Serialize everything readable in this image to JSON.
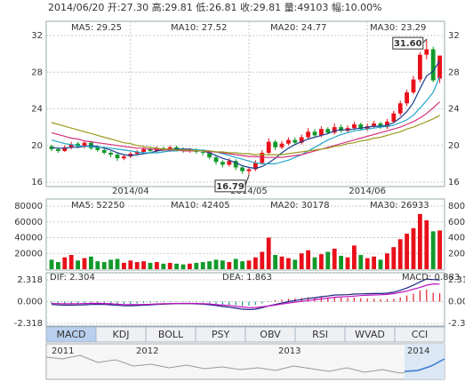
{
  "header": "2014/06/20 开:27.30 高:29.81 低:26.81 收:29.81 量:49103 幅:10.00%",
  "chart_data": [
    {
      "type": "candlestick",
      "categories": [
        null,
        null,
        null,
        null,
        null,
        null,
        null,
        null,
        null,
        null,
        null,
        null,
        "2014/04",
        null,
        null,
        null,
        null,
        null,
        null,
        null,
        null,
        null,
        null,
        null,
        null,
        null,
        null,
        null,
        null,
        null,
        "2014/05",
        null,
        null,
        null,
        null,
        null,
        null,
        null,
        null,
        null,
        null,
        null,
        null,
        null,
        null,
        null,
        null,
        null,
        "2014/06",
        null,
        null,
        null,
        null,
        null,
        null,
        null,
        null,
        null,
        null,
        null
      ],
      "open": [
        19.9,
        19.6,
        19.4,
        19.8,
        20.2,
        19.9,
        20.3,
        19.8,
        19.5,
        19.2,
        19.0,
        18.6,
        18.8,
        19.1,
        19.3,
        19.6,
        19.4,
        19.7,
        19.5,
        19.8,
        19.6,
        19.4,
        19.5,
        19.3,
        19.2,
        18.7,
        18.2,
        17.9,
        18.3,
        17.6,
        17.2,
        17.4,
        18.1,
        19.2,
        20.4,
        19.8,
        20.2,
        20.6,
        20.3,
        20.9,
        21.5,
        21.1,
        21.8,
        21.4,
        22.0,
        21.6,
        21.9,
        22.3,
        21.8,
        22.1,
        22.4,
        22.0,
        22.6,
        23.5,
        24.6,
        25.8,
        27.2,
        29.9,
        30.5,
        27.3
      ],
      "high": [
        20.1,
        19.8,
        20.0,
        20.4,
        20.4,
        20.5,
        20.5,
        20.0,
        19.7,
        19.4,
        19.2,
        19.0,
        19.3,
        19.5,
        19.8,
        19.8,
        19.9,
        19.9,
        20.0,
        20.0,
        19.8,
        19.7,
        19.7,
        19.5,
        19.3,
        18.9,
        18.4,
        18.6,
        18.5,
        17.8,
        17.6,
        18.4,
        19.5,
        20.8,
        20.6,
        20.5,
        20.9,
        20.9,
        21.2,
        21.9,
        21.8,
        22.1,
        22.0,
        22.4,
        22.3,
        22.2,
        22.6,
        22.5,
        22.4,
        22.7,
        22.6,
        22.9,
        23.8,
        24.9,
        26.1,
        27.6,
        30.2,
        31.6,
        30.8,
        29.81
      ],
      "low": [
        19.4,
        19.2,
        19.3,
        19.6,
        19.7,
        19.7,
        19.5,
        19.3,
        19.0,
        18.7,
        18.3,
        18.4,
        18.6,
        18.9,
        19.1,
        19.2,
        19.2,
        19.3,
        19.3,
        19.4,
        19.2,
        19.2,
        19.1,
        18.9,
        18.5,
        17.9,
        17.6,
        17.7,
        17.3,
        16.9,
        16.79,
        17.2,
        17.9,
        19.0,
        19.5,
        19.6,
        20.0,
        20.1,
        20.1,
        20.7,
        20.9,
        20.9,
        21.2,
        21.2,
        21.4,
        21.4,
        21.7,
        21.6,
        21.6,
        21.9,
        21.8,
        21.8,
        22.4,
        23.2,
        24.3,
        25.6,
        26.9,
        29.4,
        26.9,
        26.81
      ],
      "close": [
        19.6,
        19.4,
        19.8,
        20.1,
        19.9,
        20.3,
        19.7,
        19.5,
        19.2,
        19.0,
        18.6,
        18.8,
        19.1,
        19.3,
        19.6,
        19.4,
        19.7,
        19.5,
        19.8,
        19.6,
        19.4,
        19.5,
        19.3,
        19.2,
        18.7,
        18.2,
        17.9,
        18.3,
        17.6,
        17.2,
        17.4,
        18.1,
        19.2,
        20.4,
        19.8,
        20.2,
        20.6,
        20.3,
        20.9,
        21.5,
        21.1,
        21.8,
        21.4,
        22.0,
        21.6,
        21.9,
        22.3,
        21.8,
        22.1,
        22.4,
        22.0,
        22.6,
        23.5,
        24.6,
        25.8,
        27.2,
        29.9,
        30.5,
        27.1,
        29.81
      ],
      "up_color": "#e8101a",
      "down_color": "#119a2a",
      "series": [
        {
          "name": "MA5: 29.25",
          "color": "#1a3f8f",
          "values": [
            19.8,
            19.7,
            19.7,
            19.8,
            19.8,
            19.9,
            20.0,
            19.9,
            19.7,
            19.5,
            19.2,
            19.0,
            18.9,
            19.0,
            19.1,
            19.2,
            19.4,
            19.5,
            19.6,
            19.6,
            19.6,
            19.6,
            19.5,
            19.4,
            19.2,
            18.9,
            18.6,
            18.4,
            18.1,
            17.8,
            17.6,
            17.5,
            17.7,
            18.1,
            18.6,
            19.2,
            19.7,
            20.1,
            20.4,
            20.7,
            20.9,
            21.1,
            21.3,
            21.6,
            21.7,
            21.7,
            21.8,
            21.9,
            22.0,
            22.1,
            22.1,
            22.2,
            22.5,
            23.0,
            23.7,
            24.7,
            26.2,
            27.6,
            28.1,
            29.25
          ]
        },
        {
          "name": "MA10: 27.52",
          "color": "#22a5c9",
          "values": [
            20.6,
            20.4,
            20.2,
            20.1,
            20.0,
            19.9,
            19.9,
            19.8,
            19.8,
            19.7,
            19.6,
            19.5,
            19.4,
            19.3,
            19.2,
            19.2,
            19.2,
            19.3,
            19.4,
            19.4,
            19.5,
            19.5,
            19.5,
            19.5,
            19.4,
            19.3,
            19.1,
            18.9,
            18.7,
            18.5,
            18.3,
            18.1,
            18.0,
            18.0,
            18.0,
            18.2,
            18.4,
            18.7,
            19.0,
            19.4,
            19.8,
            20.2,
            20.6,
            20.9,
            21.2,
            21.4,
            21.6,
            21.7,
            21.8,
            21.9,
            22.0,
            22.1,
            22.2,
            22.5,
            22.8,
            23.3,
            24.1,
            24.9,
            25.8,
            27.52
          ]
        },
        {
          "name": "MA20: 24.77",
          "color": "#d3307a",
          "values": [
            21.4,
            21.2,
            21.0,
            20.8,
            20.7,
            20.5,
            20.4,
            20.3,
            20.2,
            20.1,
            20.0,
            19.9,
            19.8,
            19.7,
            19.7,
            19.6,
            19.6,
            19.5,
            19.5,
            19.5,
            19.4,
            19.4,
            19.4,
            19.4,
            19.3,
            19.3,
            19.2,
            19.1,
            19.0,
            18.9,
            18.8,
            18.8,
            18.7,
            18.7,
            18.7,
            18.7,
            18.8,
            18.9,
            19.0,
            19.2,
            19.4,
            19.6,
            19.8,
            20.0,
            20.2,
            20.4,
            20.6,
            20.8,
            21.0,
            21.2,
            21.4,
            21.6,
            21.8,
            22.0,
            22.3,
            22.6,
            23.0,
            23.5,
            24.1,
            24.77
          ]
        },
        {
          "name": "MA30: 23.29",
          "color": "#9c9a1c",
          "values": [
            22.5,
            22.3,
            22.1,
            21.9,
            21.7,
            21.5,
            21.3,
            21.1,
            20.9,
            20.7,
            20.5,
            20.3,
            20.2,
            20.0,
            19.9,
            19.8,
            19.7,
            19.6,
            19.6,
            19.5,
            19.5,
            19.5,
            19.4,
            19.4,
            19.4,
            19.3,
            19.3,
            19.2,
            19.2,
            19.1,
            19.1,
            19.0,
            19.0,
            19.0,
            19.0,
            19.0,
            19.1,
            19.2,
            19.3,
            19.4,
            19.5,
            19.6,
            19.7,
            19.9,
            20.0,
            20.2,
            20.3,
            20.5,
            20.6,
            20.8,
            20.9,
            21.1,
            21.3,
            21.5,
            21.8,
            22.0,
            22.3,
            22.6,
            22.9,
            23.29
          ]
        }
      ],
      "annotations": [
        {
          "value": 31.6,
          "label": "31.60",
          "field": "high"
        },
        {
          "value": 16.79,
          "label": "16.79",
          "field": "low"
        }
      ],
      "ylim": [
        16,
        32
      ],
      "yticks": [
        16,
        20,
        24,
        28,
        32
      ],
      "grid": true
    },
    {
      "type": "bar",
      "values": [
        12000,
        9000,
        15000,
        18000,
        11000,
        14000,
        16000,
        10000,
        9000,
        12000,
        13000,
        8000,
        11000,
        9000,
        10000,
        8000,
        9000,
        7000,
        8000,
        7000,
        6000,
        7000,
        8000,
        9000,
        10000,
        12000,
        11000,
        9000,
        13000,
        10000,
        11000,
        15000,
        22000,
        40000,
        18000,
        16000,
        14000,
        12000,
        20000,
        24000,
        15000,
        19000,
        22000,
        26000,
        17000,
        15000,
        30000,
        18000,
        14000,
        16000,
        12000,
        20000,
        28000,
        38000,
        45000,
        52000,
        70000,
        62000,
        48000,
        49103
      ],
      "legend": [
        {
          "name": "MA5: 52250",
          "color": "#1a3f8f"
        },
        {
          "name": "MA10: 42405",
          "color": "#22a5c9"
        },
        {
          "name": "MA20: 30178",
          "color": "#d3307a"
        },
        {
          "name": "MA30: 26933",
          "color": "#9c9a1c"
        }
      ],
      "ylim": [
        0,
        80000
      ],
      "yticks": [
        20000,
        40000,
        60000,
        80000
      ],
      "grid": true
    },
    {
      "type": "macd",
      "values": [
        -0.2,
        -0.25,
        -0.3,
        -0.3,
        -0.28,
        -0.25,
        -0.22,
        -0.2,
        -0.2,
        -0.22,
        -0.25,
        -0.26,
        -0.24,
        -0.2,
        -0.16,
        -0.12,
        -0.1,
        -0.08,
        -0.06,
        -0.05,
        -0.05,
        -0.06,
        -0.08,
        -0.1,
        -0.15,
        -0.22,
        -0.3,
        -0.35,
        -0.4,
        -0.45,
        -0.42,
        -0.35,
        -0.2,
        0.05,
        0.15,
        0.22,
        0.3,
        0.34,
        0.4,
        0.45,
        0.44,
        0.46,
        0.46,
        0.48,
        0.44,
        0.4,
        0.42,
        0.36,
        0.32,
        0.3,
        0.26,
        0.26,
        0.3,
        0.45,
        0.65,
        0.85,
        1.2,
        1.3,
        0.95,
        0.883
      ],
      "value_name": "MACD: 0.883",
      "pos_color": "#e0202a",
      "neg_color": "#1a9a8a",
      "series": [
        {
          "name": "DIF: 2.304",
          "color": "#1a237e",
          "values": [
            -0.3,
            -0.35,
            -0.38,
            -0.38,
            -0.36,
            -0.34,
            -0.3,
            -0.28,
            -0.3,
            -0.34,
            -0.4,
            -0.44,
            -0.44,
            -0.42,
            -0.38,
            -0.34,
            -0.3,
            -0.27,
            -0.24,
            -0.22,
            -0.22,
            -0.22,
            -0.24,
            -0.27,
            -0.33,
            -0.42,
            -0.52,
            -0.6,
            -0.7,
            -0.8,
            -0.84,
            -0.8,
            -0.65,
            -0.45,
            -0.3,
            -0.15,
            0.0,
            0.1,
            0.22,
            0.35,
            0.42,
            0.52,
            0.6,
            0.7,
            0.72,
            0.74,
            0.8,
            0.82,
            0.84,
            0.86,
            0.86,
            0.9,
            1.0,
            1.2,
            1.45,
            1.75,
            2.1,
            2.4,
            2.35,
            2.304
          ]
        },
        {
          "name": "DEA: 1.863",
          "color": "#c010c0",
          "values": [
            -0.2,
            -0.22,
            -0.23,
            -0.23,
            -0.22,
            -0.21,
            -0.19,
            -0.18,
            -0.2,
            -0.23,
            -0.27,
            -0.31,
            -0.32,
            -0.32,
            -0.3,
            -0.28,
            -0.25,
            -0.23,
            -0.21,
            -0.2,
            -0.19,
            -0.19,
            -0.2,
            -0.22,
            -0.25,
            -0.31,
            -0.37,
            -0.42,
            -0.5,
            -0.57,
            -0.63,
            -0.62,
            -0.55,
            -0.47,
            -0.37,
            -0.26,
            -0.15,
            -0.07,
            0.02,
            0.12,
            0.2,
            0.29,
            0.37,
            0.46,
            0.5,
            0.54,
            0.59,
            0.64,
            0.68,
            0.71,
            0.73,
            0.77,
            0.85,
            0.98,
            1.12,
            1.32,
            1.5,
            1.75,
            1.88,
            1.863
          ]
        }
      ],
      "ylim": [
        -2.318,
        2.318
      ],
      "yticks": [
        2.318,
        {
          "value": 0,
          "label": "0.000"
        },
        -2.318
      ],
      "grid": true
    }
  ],
  "tabs": [
    "MACD",
    "KDJ",
    "BOLL",
    "PSY",
    "OBV",
    "RSI",
    "WVAD",
    "CCI"
  ],
  "active_tab": 0,
  "navigator": {
    "labels": [
      "2011",
      "2012",
      "2013",
      "2014"
    ]
  }
}
